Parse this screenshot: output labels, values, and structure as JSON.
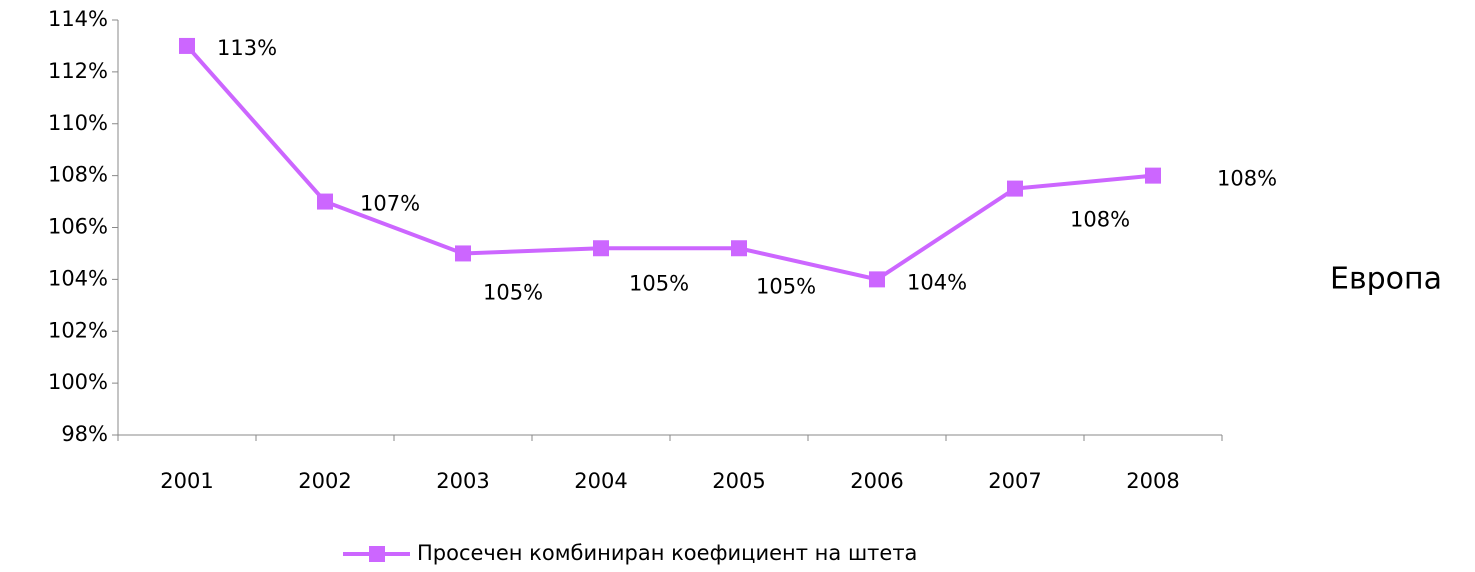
{
  "chart_data": {
    "type": "line",
    "categories": [
      "2001",
      "2002",
      "2003",
      "2004",
      "2005",
      "2006",
      "2007",
      "2008"
    ],
    "series": [
      {
        "name": "Просечен комбиниран коефициент на штета",
        "color": "#cc66ff",
        "values": [
          113,
          107,
          105,
          105.2,
          105.2,
          104,
          107.5,
          108
        ],
        "value_labels": [
          "113%",
          "107%",
          "105%",
          "105%",
          "105%",
          "104%",
          "108%",
          "108%"
        ]
      }
    ],
    "ylim": [
      98,
      114
    ],
    "yticks": [
      {
        "value": 98,
        "label": "98%"
      },
      {
        "value": 100,
        "label": "100%"
      },
      {
        "value": 102,
        "label": "102%"
      },
      {
        "value": 104,
        "label": "104%"
      },
      {
        "value": 106,
        "label": "106%"
      },
      {
        "value": 108,
        "label": "108%"
      },
      {
        "value": 110,
        "label": "110%"
      },
      {
        "value": 112,
        "label": "112%"
      },
      {
        "value": 114,
        "label": "114%"
      }
    ],
    "annotation": "Европа",
    "legend": "bottom"
  }
}
